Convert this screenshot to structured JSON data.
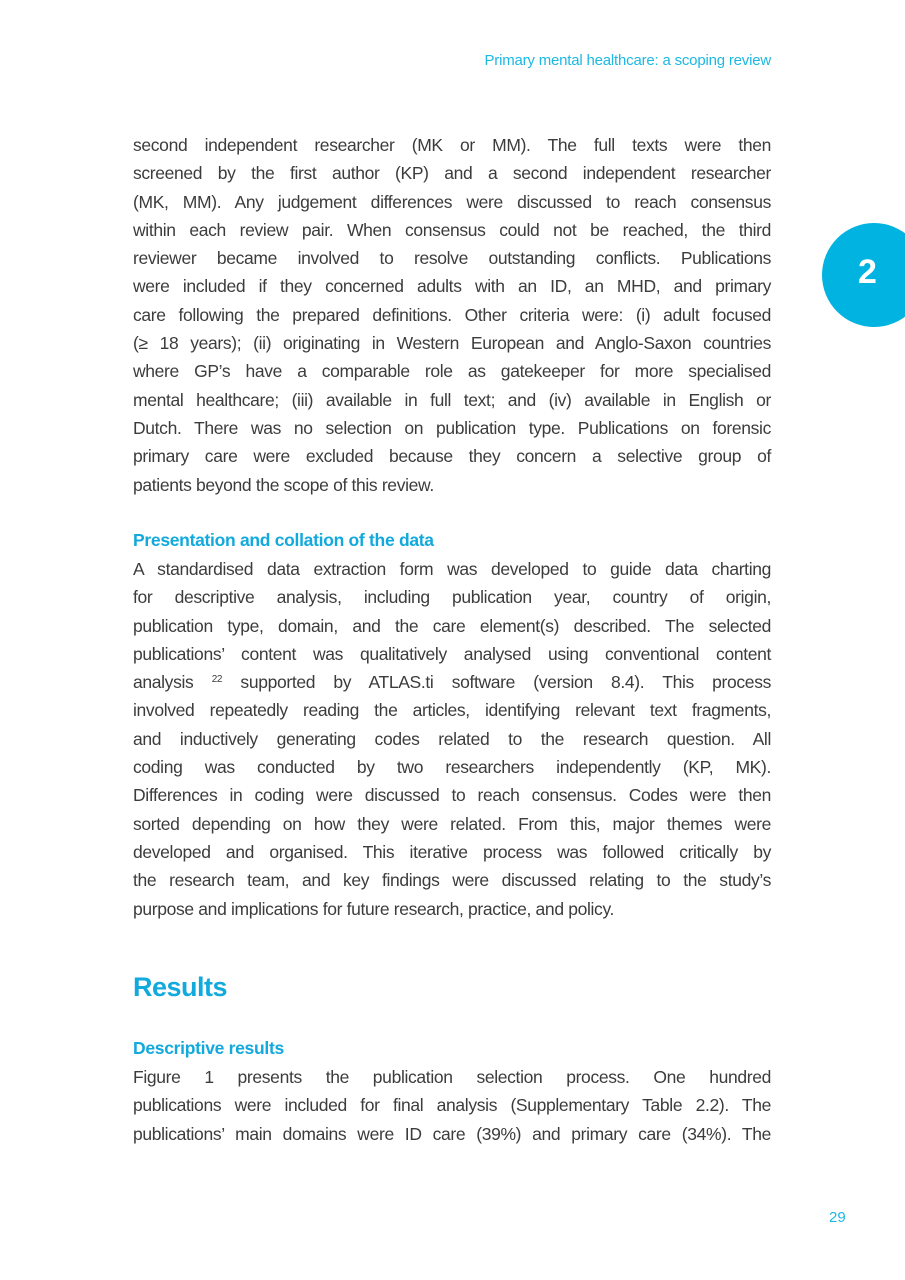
{
  "header": {
    "running_title": "Primary mental healthcare: a scoping review"
  },
  "chapter_tab": {
    "number": "2",
    "color": "#00b3e0"
  },
  "accent_color": "#12a9dc",
  "paragraph1": [
    "second independent researcher (MK or MM). The full texts were then",
    "screened by the first author (KP) and a second independent researcher",
    "(MK, MM). Any judgement differences were discussed to reach consensus",
    "within each review pair. When consensus could not be reached, the third",
    "reviewer became involved to resolve outstanding conflicts. Publications",
    "were included if they concerned adults with an ID, an MHD, and primary",
    "care following the prepared definitions. Other criteria were: (i) adult focused",
    "(≥ 18 years); (ii) originating in Western European and Anglo-Saxon countries",
    "where GP’s have a comparable role as gatekeeper for more specialised",
    "mental healthcare; (iii) available in full text; and (iv) available in English or",
    "Dutch. There was no selection on publication type. Publications on forensic",
    "primary care were excluded because they concern a selective group of",
    "patients beyond the scope of this review."
  ],
  "subheading1": "Presentation and collation of the data",
  "paragraph2": {
    "lines_before": [
      "A standardised data extraction form was developed to guide data charting",
      "for descriptive analysis, including publication year, country of origin,",
      "publication type, domain, and the care element(s) described. The selected",
      "publications’ content was qualitatively analysed using conventional content"
    ],
    "ref_line": {
      "pre": "analysis",
      "sup": "22",
      "post": " supported by ATLAS.ti software (version 8.4). This process"
    },
    "lines_after": [
      "involved repeatedly reading the articles, identifying relevant text fragments,",
      "and inductively generating codes related to the research question. All",
      "coding was conducted by two researchers independently (KP, MK).",
      "Differences in coding were discussed to reach consensus. Codes were then",
      "sorted depending on how they were related. From this, major themes were",
      "developed and organised. This iterative process was followed critically by",
      "the research team, and key findings were discussed relating to the study’s",
      "purpose and implications for future research, practice, and policy."
    ]
  },
  "section_title": "Results",
  "subheading2": "Descriptive results",
  "paragraph3": [
    "Figure 1 presents the publication selection process. One hundred",
    "publications were included for final analysis (Supplementary Table 2.2). The",
    "publications’ main domains were ID care (39%) and primary care (34%). The"
  ],
  "footer": {
    "page_number": "29"
  }
}
